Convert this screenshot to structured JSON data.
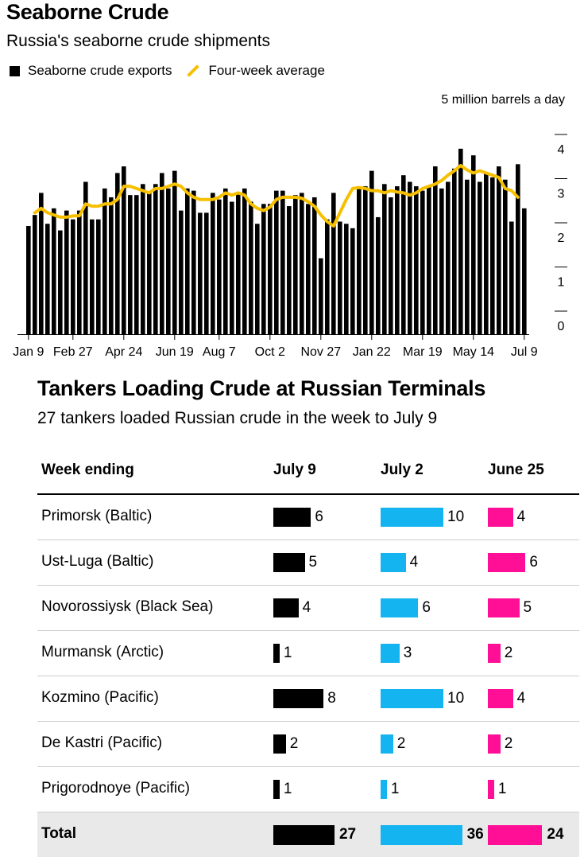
{
  "section1": {
    "title": "Seaborne Crude",
    "subtitle": "Russia's seaborne crude shipments",
    "legend": {
      "bars": "Seaborne crude exports",
      "line": "Four-week average"
    },
    "unit_label": "5 million barrels a day"
  },
  "chart_data": {
    "type": "bar",
    "title": "Seaborne Crude",
    "subtitle": "Russia's seaborne crude shipments",
    "ylabel": "5 million barrels a day",
    "ylim": [
      0,
      5
    ],
    "yticks": [
      0,
      1,
      2,
      3,
      4
    ],
    "xtick_labels": [
      "Jan 9",
      "Feb 27",
      "Apr 24",
      "Jun 19",
      "Aug 7",
      "Oct 2",
      "Nov 27",
      "Jan 22",
      "Mar 19",
      "May 14",
      "Jul 9"
    ],
    "xtick_index": [
      0,
      7,
      15,
      23,
      30,
      38,
      46,
      54,
      62,
      70,
      78
    ],
    "colors": {
      "bars": "#000000",
      "line": "#f6c000"
    },
    "series": [
      {
        "name": "Seaborne crude exports",
        "type": "bar",
        "values": [
          2.45,
          2.7,
          3.2,
          2.5,
          2.85,
          2.35,
          2.8,
          2.6,
          2.8,
          3.45,
          2.6,
          2.6,
          3.3,
          3.1,
          3.65,
          3.8,
          3.15,
          3.15,
          3.4,
          3.2,
          3.4,
          3.65,
          3.3,
          3.7,
          2.8,
          3.3,
          3.25,
          2.75,
          2.75,
          3.2,
          3.05,
          3.3,
          3.0,
          3.2,
          3.3,
          3.0,
          2.5,
          2.95,
          2.95,
          3.25,
          3.25,
          2.9,
          3.15,
          3.2,
          2.95,
          3.1,
          1.72,
          2.6,
          3.2,
          2.55,
          2.5,
          2.4,
          3.35,
          3.35,
          3.7,
          2.65,
          3.4,
          3.1,
          3.35,
          3.6,
          3.45,
          3.35,
          3.25,
          3.35,
          3.8,
          3.3,
          3.45,
          3.75,
          4.2,
          3.5,
          4.05,
          3.45,
          3.65,
          3.55,
          3.8,
          3.5,
          2.55,
          3.85,
          2.85
        ]
      },
      {
        "name": "Four-week average",
        "type": "line",
        "values": [
          null,
          2.75,
          2.85,
          2.75,
          2.7,
          2.65,
          2.65,
          2.68,
          2.68,
          2.95,
          2.9,
          2.9,
          2.95,
          2.95,
          3.05,
          3.35,
          3.35,
          3.3,
          3.25,
          3.2,
          3.3,
          3.3,
          3.35,
          3.4,
          3.35,
          3.2,
          3.1,
          3.05,
          3.05,
          3.05,
          3.1,
          3.2,
          3.15,
          3.2,
          3.15,
          2.95,
          2.85,
          2.8,
          2.88,
          3.05,
          3.1,
          3.1,
          3.1,
          3.08,
          3.0,
          2.9,
          2.7,
          2.55,
          2.45,
          2.75,
          3.05,
          3.3,
          3.32,
          3.3,
          3.25,
          3.25,
          3.2,
          3.25,
          3.22,
          3.2,
          3.15,
          3.2,
          3.3,
          3.35,
          3.4,
          3.48,
          3.6,
          3.7,
          3.82,
          3.72,
          3.65,
          3.7,
          3.65,
          3.6,
          3.55,
          3.3,
          3.25,
          3.1,
          null
        ]
      }
    ]
  },
  "section2": {
    "title": "Tankers Loading Crude at Russian Terminals",
    "subtitle": "27 tankers loaded Russian crude in the week to July 9",
    "columns": [
      "Week ending",
      "July 9",
      "July 2",
      "June 25"
    ],
    "col_colors": [
      "#000000",
      "#14b4f0",
      "#ff0f96"
    ],
    "rows": [
      {
        "terminal": "Primorsk (Baltic)",
        "values": [
          6,
          10,
          4
        ]
      },
      {
        "terminal": "Ust-Luga (Baltic)",
        "values": [
          5,
          4,
          6
        ]
      },
      {
        "terminal": "Novorossiysk (Black Sea)",
        "values": [
          4,
          6,
          5
        ]
      },
      {
        "terminal": "Murmansk (Arctic)",
        "values": [
          1,
          3,
          2
        ]
      },
      {
        "terminal": "Kozmino (Pacific)",
        "values": [
          8,
          10,
          4
        ]
      },
      {
        "terminal": "De Kastri (Pacific)",
        "values": [
          2,
          2,
          2
        ]
      },
      {
        "terminal": "Prigorodnoye (Pacific)",
        "values": [
          1,
          1,
          1
        ]
      }
    ],
    "total": {
      "label": "Total",
      "values": [
        27,
        36,
        24
      ]
    }
  }
}
